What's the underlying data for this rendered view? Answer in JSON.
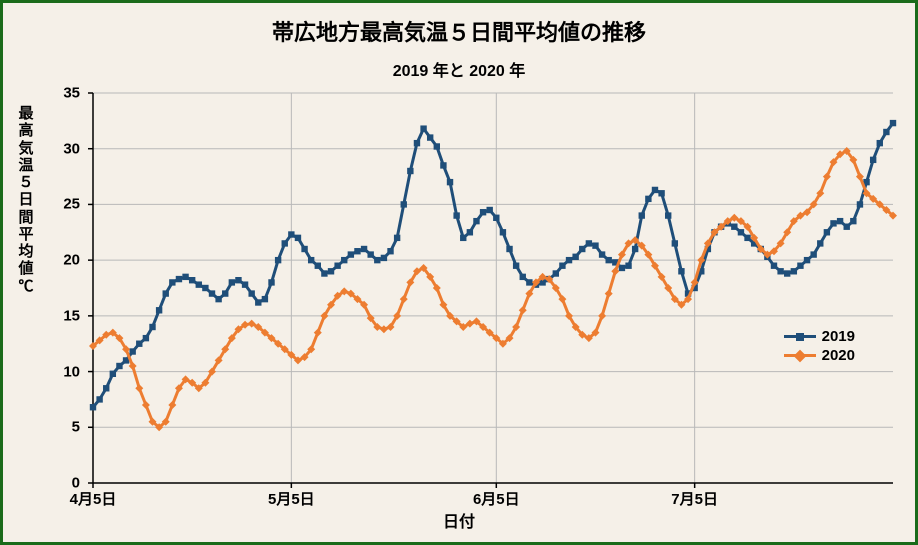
{
  "chart": {
    "type": "line",
    "title": "帯広地方最高気温５日間平均値の推移",
    "subtitle": "2019 年と 2020 年",
    "xlabel": "日付",
    "ylabel": "最高気温５日間平均値  ℃",
    "background_color": "#f5f0e8",
    "border_color": "#1a6b1a",
    "grid_color": "#b8b8b8",
    "axis_color": "#000000",
    "ylim": [
      0,
      35
    ],
    "ytick_step": 5,
    "xticks": [
      {
        "pos": 0,
        "label": "4月5日"
      },
      {
        "pos": 30,
        "label": "5月5日"
      },
      {
        "pos": 61,
        "label": "6月5日"
      },
      {
        "pos": 91,
        "label": "7月5日"
      }
    ],
    "x_count": 122,
    "series": [
      {
        "name": "2019",
        "color": "#1f4e79",
        "marker": "square",
        "line_width": 3,
        "data": [
          6.8,
          7.5,
          8.5,
          9.8,
          10.5,
          11,
          11.8,
          12.5,
          13,
          14,
          15.5,
          17,
          18,
          18.3,
          18.5,
          18.2,
          17.8,
          17.5,
          17,
          16.5,
          17,
          18,
          18.2,
          17.8,
          17,
          16.2,
          16.5,
          18,
          20,
          21.5,
          22.3,
          22,
          21,
          20,
          19.5,
          18.8,
          19,
          19.5,
          20,
          20.5,
          20.8,
          21,
          20.5,
          20,
          20.2,
          20.8,
          22,
          25,
          28,
          30.5,
          31.8,
          31,
          30.2,
          28.5,
          27,
          24,
          22,
          22.5,
          23.5,
          24.3,
          24.5,
          23.8,
          22.5,
          21,
          19.5,
          18.5,
          18,
          17.8,
          18,
          18.3,
          18.8,
          19.5,
          20,
          20.3,
          21,
          21.5,
          21.3,
          20.5,
          20,
          19.8,
          19.3,
          19.5,
          21,
          24,
          25.5,
          26.3,
          26,
          24,
          21.5,
          19,
          17,
          17.5,
          19,
          21,
          22.5,
          23,
          23.3,
          23,
          22.5,
          22,
          21.5,
          21,
          20.3,
          19.5,
          19,
          18.8,
          19,
          19.5,
          20,
          20.5,
          21.5,
          22.5,
          23.3,
          23.5,
          23,
          23.5,
          25,
          27,
          29,
          30.5,
          31.5,
          32.3
        ]
      },
      {
        "name": "2020",
        "color": "#ed7d31",
        "marker": "diamond",
        "line_width": 3,
        "data": [
          12.3,
          12.8,
          13.3,
          13.5,
          13,
          12,
          10.5,
          8.5,
          7,
          5.5,
          5,
          5.5,
          7,
          8.5,
          9.3,
          9,
          8.5,
          9,
          10,
          11,
          12,
          13,
          13.8,
          14.2,
          14.3,
          14,
          13.5,
          13,
          12.5,
          12,
          11.5,
          11,
          11.3,
          12,
          13.5,
          15,
          16,
          16.8,
          17.2,
          17,
          16.5,
          16,
          14.8,
          14,
          13.8,
          14,
          15,
          16.5,
          18,
          19,
          19.3,
          18.5,
          17.5,
          16,
          15,
          14.5,
          14,
          14.3,
          14.5,
          14,
          13.5,
          13,
          12.5,
          13,
          14,
          15.5,
          17,
          18,
          18.5,
          18.3,
          17.5,
          16.5,
          15,
          14,
          13.3,
          13,
          13.5,
          15,
          17,
          19,
          20.5,
          21.5,
          21.8,
          21.3,
          20.5,
          19.5,
          18.5,
          17.5,
          16.5,
          16,
          16.5,
          18,
          20,
          21.5,
          22.5,
          23,
          23.5,
          23.8,
          23.5,
          23,
          22,
          21,
          20.5,
          20.8,
          21.5,
          22.5,
          23.5,
          24,
          24.3,
          25,
          26,
          27.5,
          28.8,
          29.5,
          29.8,
          29,
          27.5,
          26,
          25.5,
          25,
          24.5,
          24
        ]
      }
    ],
    "legend": {
      "items": [
        "2019",
        "2020"
      ]
    }
  }
}
